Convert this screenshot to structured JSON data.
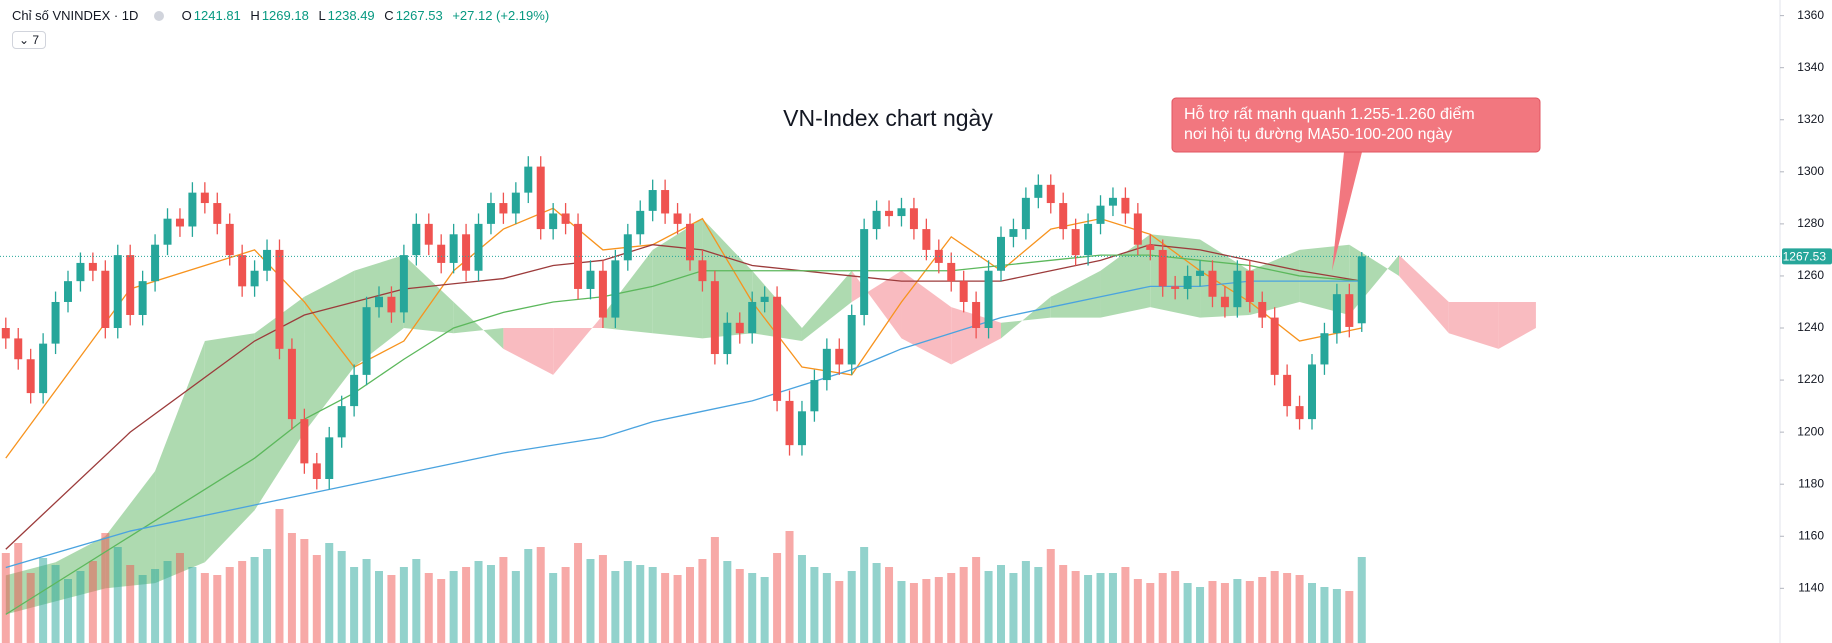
{
  "chart_data": {
    "type": "candlestick",
    "title": "Chỉ số VNINDEX · 1D",
    "indicator_count": 7,
    "ohlc_labels": [
      "O",
      "H",
      "L",
      "C"
    ],
    "change_label": "+27.12 (+2.19%)",
    "annotation": "VN-Index chart ngày",
    "callout": [
      "Hỗ trợ rất mạnh quanh 1.255-1.260 điểm",
      "nơi hội tụ đường MA50-100-200 ngày"
    ],
    "colors": {
      "up": "#26a69a",
      "down": "#ef5350",
      "cloud_up": "#a5d6a7",
      "cloud_down": "#f8b4b9",
      "callout": "#f2777f"
    },
    "ylim": [
      1119,
      1366
    ],
    "yticks": [
      1140,
      1160,
      1180,
      1200,
      1220,
      1240,
      1260,
      1280,
      1300,
      1320,
      1340,
      1360
    ],
    "volume_lim": [
      0,
      1600
    ],
    "grid": false,
    "candles": {
      "open": [
        1240,
        1236,
        1228,
        1215,
        1234,
        1250,
        1258,
        1265,
        1262,
        1240,
        1268,
        1245,
        1258,
        1272,
        1282,
        1279,
        1292,
        1288,
        1280,
        1268,
        1256,
        1262,
        1270,
        1232,
        1205,
        1188,
        1182,
        1198,
        1210,
        1222,
        1248,
        1252,
        1246,
        1268,
        1280,
        1272,
        1265,
        1276,
        1262,
        1280,
        1288,
        1284,
        1292,
        1302,
        1278,
        1284,
        1280,
        1255,
        1262,
        1244,
        1266,
        1276,
        1285,
        1293,
        1284,
        1280,
        1266,
        1258,
        1230,
        1242,
        1238,
        1250,
        1252,
        1212,
        1195,
        1208,
        1220,
        1232,
        1226,
        1245,
        1278,
        1285,
        1283,
        1286,
        1278,
        1270,
        1265,
        1258,
        1250,
        1240,
        1262,
        1275,
        1278,
        1290,
        1295,
        1288,
        1278,
        1268,
        1280,
        1287,
        1290,
        1284,
        1272,
        1270,
        1256,
        1255,
        1260,
        1262,
        1252,
        1248,
        1262,
        1250,
        1244,
        1222,
        1210,
        1205,
        1226,
        1238,
        1253,
        1241.81
      ],
      "high": [
        1244,
        1240,
        1232,
        1238,
        1254,
        1262,
        1269,
        1269,
        1266,
        1272,
        1272,
        1262,
        1276,
        1286,
        1286,
        1296,
        1296,
        1292,
        1284,
        1272,
        1266,
        1274,
        1274,
        1236,
        1209,
        1192,
        1202,
        1214,
        1226,
        1252,
        1256,
        1256,
        1272,
        1284,
        1284,
        1276,
        1280,
        1280,
        1284,
        1292,
        1292,
        1296,
        1306,
        1306,
        1288,
        1288,
        1284,
        1266,
        1266,
        1270,
        1280,
        1289,
        1297,
        1297,
        1288,
        1284,
        1270,
        1262,
        1246,
        1246,
        1254,
        1256,
        1256,
        1216,
        1212,
        1224,
        1236,
        1236,
        1249,
        1282,
        1289,
        1289,
        1290,
        1290,
        1282,
        1274,
        1269,
        1262,
        1254,
        1266,
        1279,
        1282,
        1294,
        1299,
        1299,
        1292,
        1282,
        1284,
        1291,
        1294,
        1294,
        1288,
        1276,
        1274,
        1260,
        1264,
        1266,
        1266,
        1256,
        1266,
        1266,
        1254,
        1248,
        1226,
        1214,
        1230,
        1242,
        1257,
        1257,
        1269.18
      ],
      "low": [
        1232,
        1224,
        1211,
        1211,
        1230,
        1246,
        1254,
        1258,
        1236,
        1236,
        1241,
        1241,
        1254,
        1268,
        1275,
        1275,
        1284,
        1276,
        1264,
        1252,
        1252,
        1258,
        1228,
        1201,
        1184,
        1178,
        1178,
        1194,
        1206,
        1218,
        1244,
        1242,
        1242,
        1264,
        1268,
        1261,
        1261,
        1258,
        1258,
        1276,
        1280,
        1280,
        1288,
        1274,
        1274,
        1276,
        1251,
        1251,
        1240,
        1240,
        1262,
        1272,
        1281,
        1280,
        1276,
        1262,
        1254,
        1226,
        1226,
        1234,
        1234,
        1246,
        1208,
        1191,
        1191,
        1204,
        1216,
        1222,
        1222,
        1241,
        1274,
        1279,
        1279,
        1274,
        1266,
        1261,
        1254,
        1246,
        1236,
        1236,
        1258,
        1271,
        1274,
        1286,
        1284,
        1274,
        1264,
        1264,
        1276,
        1283,
        1280,
        1268,
        1266,
        1252,
        1251,
        1251,
        1256,
        1248,
        1244,
        1244,
        1246,
        1240,
        1218,
        1206,
        1201,
        1201,
        1222,
        1234,
        1236.41,
        1238.49
      ],
      "close": [
        1236,
        1228,
        1215,
        1234,
        1250,
        1258,
        1265,
        1262,
        1240,
        1268,
        1245,
        1258,
        1272,
        1282,
        1279,
        1292,
        1288,
        1280,
        1268,
        1256,
        1262,
        1270,
        1232,
        1205,
        1188,
        1182,
        1198,
        1210,
        1222,
        1248,
        1252,
        1246,
        1268,
        1280,
        1272,
        1265,
        1276,
        1262,
        1280,
        1288,
        1284,
        1292,
        1302,
        1278,
        1284,
        1280,
        1255,
        1262,
        1244,
        1266,
        1276,
        1285,
        1293,
        1284,
        1280,
        1266,
        1258,
        1230,
        1242,
        1238,
        1250,
        1252,
        1212,
        1195,
        1208,
        1220,
        1232,
        1226,
        1245,
        1278,
        1285,
        1283,
        1286,
        1278,
        1270,
        1265,
        1258,
        1250,
        1240,
        1262,
        1275,
        1278,
        1290,
        1295,
        1288,
        1278,
        1268,
        1280,
        1287,
        1290,
        1284,
        1272,
        1270,
        1256,
        1255,
        1260,
        1262,
        1252,
        1248,
        1262,
        1250,
        1244,
        1222,
        1210,
        1205,
        1226,
        1238,
        1253,
        1240.41,
        1267.53
      ]
    },
    "volume": [
      900,
      1000,
      700,
      850,
      780,
      640,
      720,
      820,
      1100,
      960,
      780,
      680,
      740,
      820,
      900,
      760,
      700,
      680,
      760,
      820,
      860,
      940,
      1340,
      1100,
      1040,
      880,
      1000,
      920,
      760,
      840,
      720,
      680,
      760,
      840,
      700,
      640,
      720,
      760,
      820,
      780,
      860,
      720,
      940,
      960,
      700,
      760,
      1000,
      840,
      880,
      720,
      820,
      780,
      760,
      700,
      680,
      760,
      840,
      1060,
      820,
      740,
      700,
      660,
      900,
      1120,
      880,
      760,
      700,
      620,
      720,
      960,
      800,
      760,
      620,
      600,
      640,
      660,
      700,
      760,
      860,
      720,
      780,
      700,
      820,
      760,
      940,
      780,
      720,
      680,
      700,
      700,
      760,
      640,
      600,
      700,
      720,
      600,
      560,
      620,
      600,
      640,
      620,
      660,
      720,
      700,
      680,
      600,
      560,
      540,
      520,
      860
    ],
    "lines": [
      {
        "color": "#f7931e",
        "x": [
          0,
          10,
          20,
          24,
          28,
          32,
          36,
          40,
          44,
          48,
          52,
          56,
          60,
          64,
          68,
          72,
          76,
          80,
          84,
          88,
          92,
          96,
          100,
          104,
          109
        ],
        "values": [
          1190,
          1255,
          1270,
          1250,
          1225,
          1235,
          1262,
          1278,
          1286,
          1270,
          1272,
          1282,
          1250,
          1225,
          1222,
          1250,
          1275,
          1262,
          1278,
          1282,
          1276,
          1262,
          1250,
          1235,
          1240
        ]
      },
      {
        "color": "#9c3b3b",
        "x": [
          0,
          10,
          20,
          24,
          28,
          32,
          36,
          40,
          44,
          48,
          52,
          56,
          60,
          64,
          68,
          72,
          76,
          80,
          84,
          88,
          92,
          96,
          100,
          104,
          109
        ],
        "values": [
          1155,
          1200,
          1235,
          1245,
          1250,
          1255,
          1257,
          1259,
          1264,
          1266,
          1272,
          1270,
          1264,
          1262,
          1260,
          1258,
          1258,
          1258,
          1262,
          1266,
          1272,
          1270,
          1266,
          1262,
          1258
        ]
      },
      {
        "color": "#5cb85c",
        "x": [
          0,
          10,
          20,
          24,
          28,
          32,
          36,
          40,
          44,
          48,
          52,
          56,
          60,
          64,
          68,
          72,
          76,
          80,
          84,
          88,
          92,
          96,
          100,
          104,
          109
        ],
        "values": [
          1130,
          1160,
          1190,
          1205,
          1215,
          1228,
          1240,
          1246,
          1250,
          1252,
          1256,
          1262,
          1262,
          1262,
          1262,
          1262,
          1262,
          1264,
          1266,
          1268,
          1268,
          1266,
          1264,
          1260,
          1258
        ]
      },
      {
        "color": "#4aa3df",
        "x": [
          0,
          10,
          20,
          24,
          28,
          32,
          36,
          40,
          44,
          48,
          52,
          56,
          60,
          64,
          68,
          72,
          76,
          80,
          84,
          88,
          92,
          96,
          100,
          104,
          109
        ],
        "values": [
          1148,
          1162,
          1172,
          1176,
          1180,
          1184,
          1188,
          1192,
          1195,
          1198,
          1204,
          1208,
          1212,
          1218,
          1224,
          1232,
          1238,
          1244,
          1248,
          1252,
          1256,
          1256,
          1258,
          1258,
          1258
        ]
      }
    ],
    "cloud": {
      "x": [
        0,
        4,
        8,
        12,
        16,
        20,
        24,
        28,
        32,
        36,
        40,
        44,
        48,
        52,
        56,
        60,
        64,
        68,
        72,
        76,
        80,
        84,
        88,
        92,
        96,
        100,
        104,
        108,
        112,
        116,
        120,
        123
      ],
      "span_a": [
        1145,
        1150,
        1160,
        1185,
        1235,
        1238,
        1252,
        1262,
        1268,
        1250,
        1232,
        1222,
        1245,
        1270,
        1282,
        1262,
        1240,
        1262,
        1236,
        1226,
        1236,
        1252,
        1262,
        1276,
        1274,
        1262,
        1270,
        1272,
        1260,
        1238,
        1232,
        1240
      ],
      "span_b": [
        1130,
        1135,
        1140,
        1142,
        1150,
        1170,
        1200,
        1225,
        1240,
        1238,
        1240,
        1240,
        1240,
        1238,
        1236,
        1238,
        1235,
        1250,
        1262,
        1248,
        1242,
        1244,
        1244,
        1248,
        1244,
        1245,
        1250,
        1245,
        1268,
        1250,
        1250,
        1250
      ]
    }
  }
}
